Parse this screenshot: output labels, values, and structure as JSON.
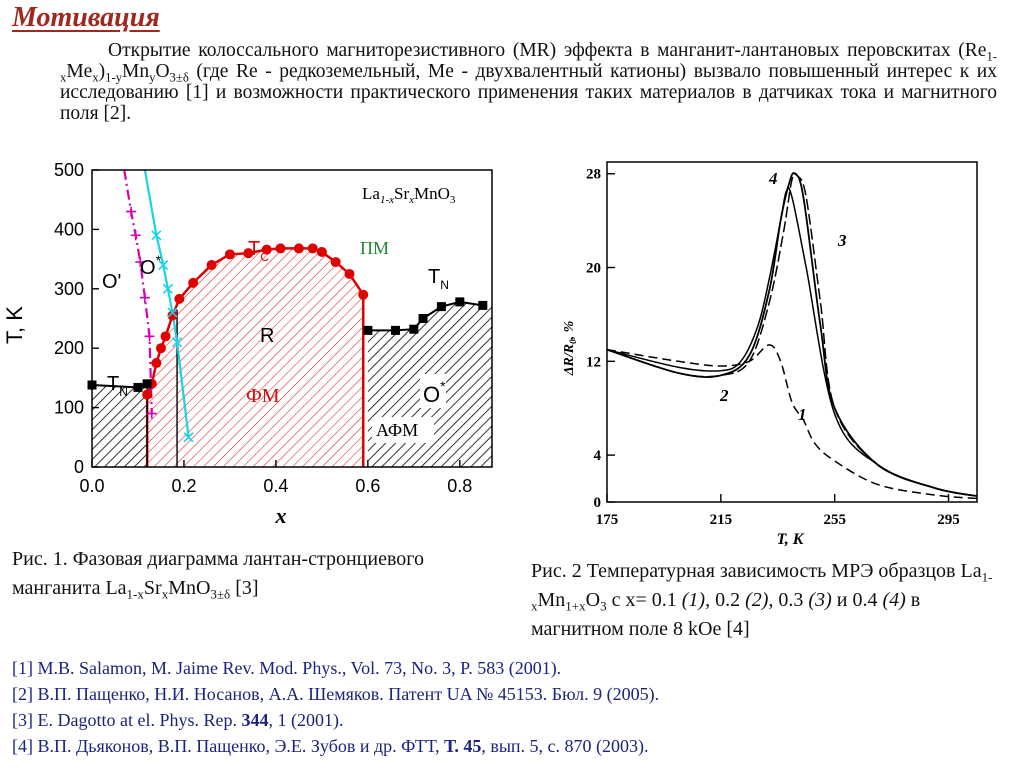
{
  "title": "Мотивация",
  "intro": {
    "p1": "Открытие колоссального магниторезистивного (MR) эффекта в манганит-лантановых перовскитах (Re",
    "sub1": "1-x",
    "p2": "Me",
    "sub2": "x",
    "p3": ")",
    "sub3": "1-y",
    "p4": "Mn",
    "sub4": "y",
    "p5": "O",
    "sub5": "3±δ",
    "p6": " (где Re - редкоземельный, Me - двухвалентный катионы) вызвало повышенный интерес к их исследованию [1] и возможности практического применения таких материалов в датчиках тока и магнитного поля [2]."
  },
  "colors": {
    "title": "#a0281e",
    "refs": "#1a237e",
    "tc_curve": "#e00000",
    "o_prime_line": "#d400b8",
    "o_star_line": "#18d4e8",
    "pm_label": "#1f8a2e",
    "fm_label": "#d01010"
  },
  "figure1": {
    "formula": {
      "a": "La",
      "b": "1-x",
      "c": "Sr",
      "d": "x",
      "e": "MnO",
      "f": "3"
    },
    "y_axis_label": "T, K",
    "x_axis_label": "x",
    "x_ticks": [
      "0.0",
      "0.2",
      "0.4",
      "0.6",
      "0.8"
    ],
    "y_ticks": [
      "0",
      "100",
      "200",
      "300",
      "400",
      "500"
    ],
    "regions": {
      "o_prime": "O'",
      "o_star_left": "O",
      "o_star_left_sup": "*",
      "tc": "T",
      "tc_sub": "C",
      "pm": "ПМ",
      "tn_right": "T",
      "tn_right_sub": "N",
      "r": "R",
      "tn_left": "T",
      "tn_left_sub": "N",
      "fm": "ФМ",
      "o_star_right": "O",
      "o_star_right_sup": "*",
      "afm": "АФМ"
    }
  },
  "figure2": {
    "y_axis_label": "ΔR/R",
    "y_axis_label_sub": "0",
    "y_axis_label_unit": ", %",
    "x_axis_label": "T, K",
    "x_ticks": [
      "175",
      "215",
      "255",
      "295"
    ],
    "y_ticks": [
      "0",
      "4",
      "12",
      "20",
      "28"
    ],
    "curve_labels": [
      "1",
      "2",
      "3",
      "4"
    ]
  },
  "chart_data": [
    {
      "type": "scatter",
      "title": "",
      "xlabel": "x",
      "ylabel": "T, K",
      "xlim": [
        0,
        0.87
      ],
      "ylim": [
        0,
        500
      ],
      "grid": false,
      "series": [
        {
          "name": "T_C",
          "x": [
            0.12,
            0.13,
            0.14,
            0.15,
            0.16,
            0.175,
            0.19,
            0.22,
            0.26,
            0.3,
            0.34,
            0.38,
            0.41,
            0.45,
            0.48,
            0.5,
            0.53,
            0.56,
            0.59
          ],
          "y": [
            122,
            140,
            175,
            200,
            220,
            255,
            283,
            310,
            340,
            358,
            360,
            366,
            368,
            368,
            368,
            362,
            345,
            325,
            290
          ]
        },
        {
          "name": "T_N (x≈0)",
          "x": [
            0.0,
            0.1,
            0.12
          ],
          "y": [
            138,
            134,
            140
          ]
        },
        {
          "name": "T_N (x≥0.6)",
          "x": [
            0.6,
            0.66,
            0.7,
            0.72,
            0.76,
            0.8,
            0.85
          ],
          "y": [
            230,
            230,
            232,
            250,
            270,
            278,
            272
          ]
        },
        {
          "name": "O'",
          "x": [
            0.07,
            0.085,
            0.095,
            0.105,
            0.115,
            0.125,
            0.13
          ],
          "y": [
            500,
            430,
            390,
            345,
            285,
            220,
            90
          ]
        },
        {
          "name": "O*",
          "x": [
            0.115,
            0.14,
            0.155,
            0.165,
            0.175,
            0.185,
            0.21
          ],
          "y": [
            500,
            390,
            340,
            300,
            260,
            210,
            50
          ]
        }
      ]
    },
    {
      "type": "line",
      "title": "",
      "xlabel": "T, K",
      "ylabel": "ΔR/R0, %",
      "xlim": [
        175,
        305
      ],
      "ylim": [
        0,
        29
      ],
      "grid": false,
      "series": [
        {
          "name": "1",
          "x": [
            175,
            200,
            215,
            225,
            232,
            236,
            240,
            244,
            248,
            255,
            270,
            290,
            305
          ],
          "y": [
            13,
            12,
            11.6,
            12,
            13.4,
            12,
            8.5,
            7,
            5,
            3.5,
            1.5,
            0.6,
            0.3
          ]
        },
        {
          "name": "2",
          "x": [
            175,
            200,
            215,
            222,
            228,
            232,
            236,
            238,
            240,
            245,
            255,
            270,
            290,
            305
          ],
          "y": [
            13,
            11.5,
            11.2,
            12,
            15,
            19,
            24,
            26.5,
            26,
            20,
            7.5,
            3.2,
            1.2,
            0.5
          ]
        },
        {
          "name": "3",
          "x": [
            175,
            200,
            215,
            225,
            232,
            237,
            240,
            242,
            245,
            250,
            255,
            270,
            290,
            305
          ],
          "y": [
            13,
            11,
            10.8,
            12,
            17,
            23,
            27.5,
            27.8,
            26,
            17,
            8,
            3.2,
            1.2,
            0.5
          ]
        },
        {
          "name": "4",
          "x": [
            175,
            200,
            215,
            225,
            232,
            236,
            239,
            241,
            244,
            250,
            255,
            270,
            290,
            305
          ],
          "y": [
            13,
            11,
            10.8,
            12.5,
            18,
            24,
            27.2,
            28,
            26,
            15,
            8,
            3.2,
            1.2,
            0.5
          ]
        }
      ]
    }
  ],
  "caption1": {
    "text": "Рис. 1. Фазовая диаграмма лантан-стронциевого манганита La",
    "s1": "1-x",
    "t2": "Sr",
    "s2": "x",
    "t3": "MnO",
    "s3": "3±δ",
    "t4": " [3]"
  },
  "caption2": {
    "text": "Рис. 2 Температурная зависимость МРЭ образцов La",
    "s1": "1-x",
    "t2": "Mn",
    "s2": "1+x",
    "t3": "O",
    "s3": "3",
    "t4": " с x= 0.1 ",
    "n1": "(1)",
    "t5": ", 0.2 ",
    "n2": "(2)",
    "t6": ", 0.3 ",
    "n3": "(3)",
    "t7": " и 0.4 ",
    "n4": "(4)",
    "t8": " в магнитном поле 8 kOe [4]"
  },
  "references": [
    {
      "a": "[1] M.B. Salamon, M. Jaime Rev. Mod. Phys., Vol. 73, No. 3, P. 583 (2001).",
      "b": "",
      "c": ""
    },
    {
      "a": "[2] В.П. Пащенко, Н.И. Носанов, А.А. Шемяков. Патент UA № 45153. Бюл. 9 (2005).",
      "b": "",
      "c": ""
    },
    {
      "a": "[3] E. Dagotto at el. Phys. Rep. ",
      "b": "344",
      "c": ", 1 (2001)."
    },
    {
      "a": "[4] В.П. Дьяконов, В.П. Пащенко, Э.Е. Зубов и др. ФТТ, ",
      "b": "Т. 45",
      "c": ", вып. 5, с. 870 (2003)."
    }
  ]
}
